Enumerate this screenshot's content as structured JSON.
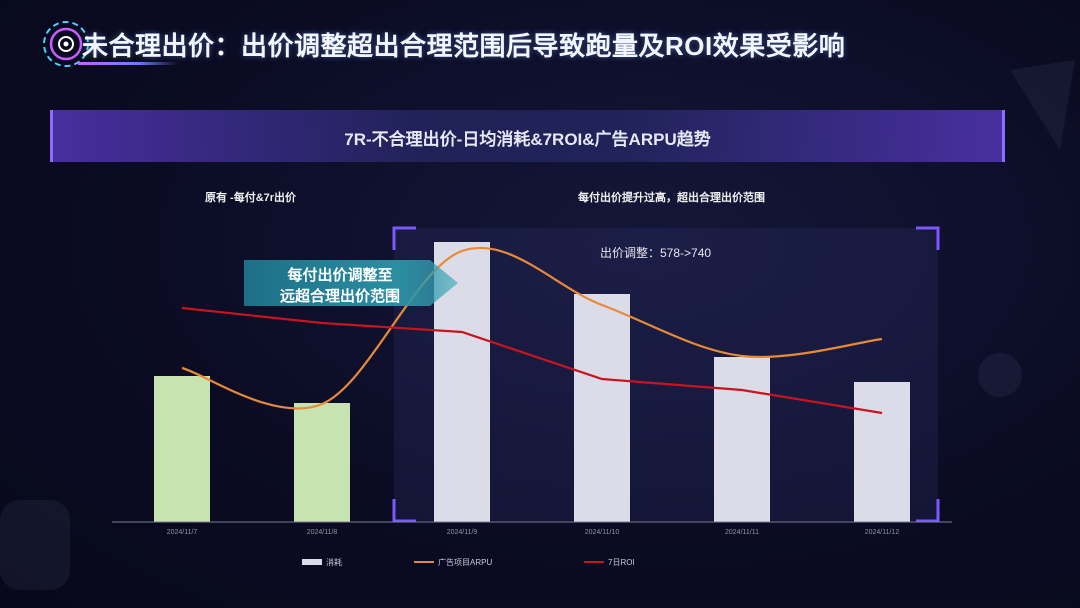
{
  "header": {
    "title": "未合理出价：出价调整超出合理范围后导致跑量及ROI效果受影响"
  },
  "banner": {
    "title": "7R-不合理出价-日均消耗&7ROI&广告ARPU趋势"
  },
  "annotations": {
    "left_label": "原有 -每付&7r出价",
    "right_label": "每付出价提升过高，超出合理出价范围",
    "bid_change": "出价调整：578->740",
    "callout_line1": "每付出价调整至",
    "callout_line2": "远超合理出价范围"
  },
  "colors": {
    "bar_before": "#c7e3b0",
    "bar_after": "#dcdce8",
    "arpu_line": "#e8893a",
    "roi_line": "#c8141e",
    "highlight_frame": "#7b58ff"
  },
  "chart_data": {
    "type": "bar",
    "categories": [
      "2024/11/7",
      "2024/11/8",
      "2024/11/9",
      "2024/11/10",
      "2024/11/11",
      "2024/11/12"
    ],
    "series": [
      {
        "name": "消耗",
        "type": "bar",
        "values": [
          146,
          119,
          280,
          228,
          165,
          140
        ]
      },
      {
        "name": "广告项目ARPU",
        "type": "line",
        "smooth": true,
        "values": [
          154,
          118,
          271,
          217,
          166,
          183
        ]
      },
      {
        "name": "7日ROI",
        "type": "line",
        "values": [
          214,
          199,
          190,
          143,
          132,
          109
        ]
      }
    ],
    "ylim": [
      0,
      300
    ],
    "legend_position": "bottom",
    "grid": false,
    "highlight_categories": [
      "2024/11/9",
      "2024/11/10",
      "2024/11/11",
      "2024/11/12"
    ]
  }
}
